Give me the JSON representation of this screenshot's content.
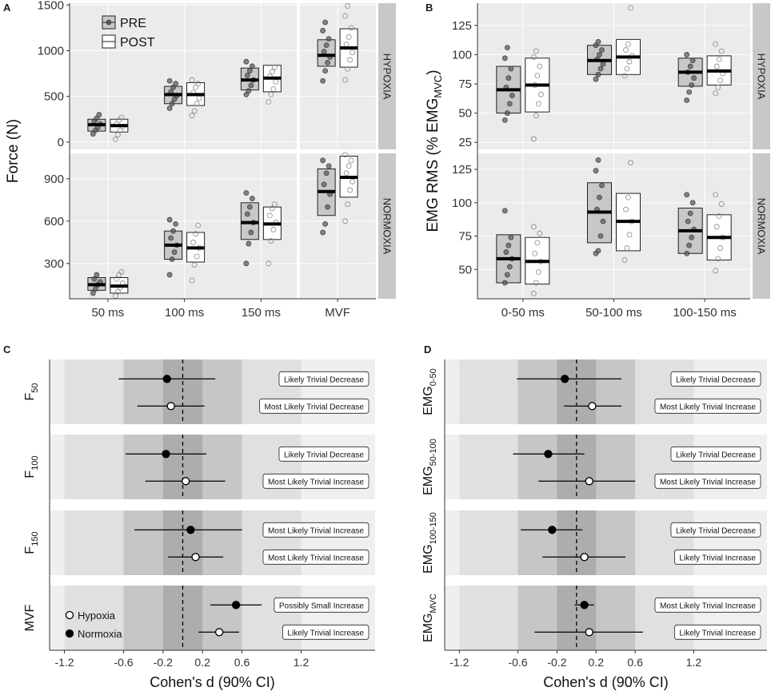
{
  "figure": {
    "colors": {
      "panel_bg": "#ebebeb",
      "grid": "#ffffff",
      "strip_bg": "#c8c8c8",
      "ci_band_light": "#e0e0e0",
      "ci_band_mid": "#c6c6c6",
      "ci_band_dark": "#adadad",
      "pre_fill": "#c8c8c8",
      "post_fill": "#ffffff",
      "pre_point": "#555555",
      "text": "#1a1a1a"
    }
  },
  "chart_data": [
    {
      "id": "A",
      "panel_label": "A",
      "type": "box",
      "ylabel": "Force (N)",
      "categories": [
        "50 ms",
        "100 ms",
        "150 ms",
        "MVF"
      ],
      "legend": {
        "pre": "PRE",
        "post": "POST",
        "position": "top-left"
      },
      "facets": [
        {
          "strip": "HYPOXIA",
          "ylim": [
            -80,
            1520
          ],
          "yticks": [
            0,
            500,
            1000,
            1500
          ],
          "boxes": [
            {
              "cat": 0,
              "group": "PRE",
              "q1": 120,
              "median": 190,
              "q3": 250,
              "points": [
                90,
                130,
                160,
                200,
                230,
                260,
                300
              ]
            },
            {
              "cat": 0,
              "group": "POST",
              "q1": 110,
              "median": 180,
              "q3": 250,
              "points": [
                30,
                80,
                130,
                170,
                200,
                240,
                270
              ]
            },
            {
              "cat": 1,
              "group": "PRE",
              "q1": 420,
              "median": 520,
              "q3": 610,
              "points": [
                370,
                420,
                470,
                510,
                550,
                600,
                640,
                670
              ]
            },
            {
              "cat": 1,
              "group": "POST",
              "q1": 400,
              "median": 520,
              "q3": 650,
              "points": [
                290,
                340,
                420,
                480,
                540,
                600,
                640,
                680
              ]
            },
            {
              "cat": 2,
              "group": "PRE",
              "q1": 570,
              "median": 680,
              "q3": 810,
              "points": [
                520,
                560,
                620,
                680,
                730,
                780,
                830,
                880
              ]
            },
            {
              "cat": 2,
              "group": "POST",
              "q1": 550,
              "median": 700,
              "q3": 840,
              "points": [
                440,
                520,
                580,
                660,
                720,
                770,
                820
              ]
            },
            {
              "cat": 3,
              "group": "PRE",
              "q1": 830,
              "median": 950,
              "q3": 1120,
              "points": [
                670,
                780,
                870,
                930,
                990,
                1060,
                1130,
                1220,
                1310
              ]
            },
            {
              "cat": 3,
              "group": "POST",
              "q1": 820,
              "median": 1030,
              "q3": 1240,
              "points": [
                680,
                800,
                900,
                980,
                1070,
                1150,
                1250,
                1380,
                1490
              ]
            }
          ]
        },
        {
          "strip": "NORMOXIA",
          "ylim": [
            50,
            1080
          ],
          "yticks": [
            300,
            600,
            900
          ],
          "boxes": [
            {
              "cat": 0,
              "group": "PRE",
              "q1": 110,
              "median": 150,
              "q3": 200,
              "points": [
                90,
                120,
                150,
                170,
                190,
                220
              ]
            },
            {
              "cat": 0,
              "group": "POST",
              "q1": 90,
              "median": 140,
              "q3": 200,
              "points": [
                70,
                100,
                130,
                160,
                190,
                220,
                240
              ]
            },
            {
              "cat": 1,
              "group": "PRE",
              "q1": 330,
              "median": 430,
              "q3": 530,
              "points": [
                220,
                330,
                380,
                430,
                480,
                530,
                580,
                610
              ]
            },
            {
              "cat": 1,
              "group": "POST",
              "q1": 310,
              "median": 410,
              "q3": 520,
              "points": [
                180,
                290,
                350,
                410,
                450,
                510,
                570
              ]
            },
            {
              "cat": 2,
              "group": "PRE",
              "q1": 470,
              "median": 590,
              "q3": 730,
              "points": [
                300,
                440,
                520,
                590,
                650,
                700,
                760,
                800
              ]
            },
            {
              "cat": 2,
              "group": "POST",
              "q1": 470,
              "median": 580,
              "q3": 700,
              "points": [
                300,
                460,
                540,
                590,
                640,
                690,
                720
              ]
            },
            {
              "cat": 3,
              "group": "PRE",
              "q1": 640,
              "median": 810,
              "q3": 970,
              "points": [
                520,
                580,
                700,
                790,
                860,
                940,
                990,
                1030
              ]
            },
            {
              "cat": 3,
              "group": "POST",
              "q1": 770,
              "median": 910,
              "q3": 1060,
              "points": [
                600,
                720,
                820,
                880,
                940,
                990,
                1030,
                1070
              ]
            }
          ]
        }
      ]
    },
    {
      "id": "B",
      "panel_label": "B",
      "type": "box",
      "ylabel": "EMG RMS (% EMG",
      "ylabel_sub": "MVC",
      "ylabel_end": ")",
      "categories": [
        "0-50 ms",
        "50-100 ms",
        "100-150 ms"
      ],
      "facets": [
        {
          "strip": "HYPOXIA",
          "ylim": [
            19,
            144
          ],
          "yticks": [
            25,
            50,
            75,
            100,
            125
          ],
          "boxes": [
            {
              "cat": 0,
              "group": "PRE",
              "q1": 50,
              "median": 70,
              "q3": 90,
              "points": [
                44,
                50,
                58,
                65,
                72,
                80,
                88,
                97,
                106
              ]
            },
            {
              "cat": 0,
              "group": "POST",
              "q1": 51,
              "median": 74,
              "q3": 97,
              "points": [
                28,
                48,
                58,
                66,
                74,
                82,
                90,
                98,
                103
              ]
            },
            {
              "cat": 1,
              "group": "PRE",
              "q1": 83,
              "median": 95,
              "q3": 108,
              "points": [
                79,
                83,
                88,
                92,
                96,
                100,
                104,
                108,
                111
              ]
            },
            {
              "cat": 1,
              "group": "POST",
              "q1": 83,
              "median": 98,
              "q3": 113,
              "points": [
                82,
                88,
                94,
                99,
                104,
                109,
                140
              ]
            },
            {
              "cat": 2,
              "group": "PRE",
              "q1": 73,
              "median": 85,
              "q3": 97,
              "points": [
                61,
                68,
                74,
                80,
                85,
                90,
                95,
                100
              ]
            },
            {
              "cat": 2,
              "group": "POST",
              "q1": 74,
              "median": 86,
              "q3": 99,
              "points": [
                67,
                72,
                78,
                84,
                90,
                96,
                103,
                109
              ]
            }
          ]
        },
        {
          "strip": "NORMOXIA",
          "ylim": [
            28,
            137
          ],
          "yticks": [
            50,
            75,
            100,
            125
          ],
          "boxes": [
            {
              "cat": 0,
              "group": "PRE",
              "q1": 40,
              "median": 58,
              "q3": 76,
              "points": [
                40,
                46,
                52,
                58,
                63,
                68,
                74,
                94
              ]
            },
            {
              "cat": 0,
              "group": "POST",
              "q1": 39,
              "median": 56,
              "q3": 74,
              "points": [
                32,
                40,
                48,
                56,
                62,
                70,
                77,
                82
              ]
            },
            {
              "cat": 1,
              "group": "PRE",
              "q1": 70,
              "median": 93,
              "q3": 115,
              "points": [
                62,
                64,
                75,
                86,
                95,
                104,
                113,
                124,
                132
              ]
            },
            {
              "cat": 1,
              "group": "POST",
              "q1": 64,
              "median": 86,
              "q3": 107,
              "points": [
                57,
                66,
                76,
                86,
                95,
                104,
                130
              ]
            },
            {
              "cat": 2,
              "group": "PRE",
              "q1": 62,
              "median": 79,
              "q3": 96,
              "points": [
                62,
                68,
                74,
                80,
                86,
                92,
                100,
                106
              ]
            },
            {
              "cat": 2,
              "group": "POST",
              "q1": 57,
              "median": 74,
              "q3": 91,
              "points": [
                49,
                58,
                66,
                74,
                82,
                90,
                99,
                106
              ]
            }
          ]
        }
      ]
    },
    {
      "id": "C",
      "panel_label": "C",
      "type": "forest",
      "xlabel": "Cohen's d (90% CI)",
      "xlim": [
        -1.35,
        1.95
      ],
      "xticks": [
        -1.2,
        -0.6,
        -0.2,
        0.2,
        0.6,
        1.2
      ],
      "xtick_labels": [
        "-1.2",
        "-0.6",
        "-0.2",
        "0.2",
        "0.6",
        "1.2"
      ],
      "band_edges": [
        -1.2,
        -0.6,
        -0.2,
        0.2,
        0.6,
        1.2
      ],
      "reference_line": 0,
      "legend": {
        "hypoxia": "Hypoxia",
        "normoxia": "Normoxia",
        "position": "bottom-left"
      },
      "facets": [
        {
          "main": "F",
          "sub": "50",
          "rows": [
            {
              "condition": "Normoxia",
              "estimate": -0.16,
              "lower": -0.65,
              "upper": 0.33,
              "label": "Likely Trivial Decrease"
            },
            {
              "condition": "Hypoxia",
              "estimate": -0.12,
              "lower": -0.46,
              "upper": 0.22,
              "label": "Most Likely Trivial Decrease"
            }
          ]
        },
        {
          "main": "F",
          "sub": "100",
          "rows": [
            {
              "condition": "Normoxia",
              "estimate": -0.17,
              "lower": -0.58,
              "upper": 0.24,
              "label": "Likely Trivial Decrease"
            },
            {
              "condition": "Hypoxia",
              "estimate": 0.03,
              "lower": -0.38,
              "upper": 0.43,
              "label": "Most Likely Trivial Increase"
            }
          ]
        },
        {
          "main": "F",
          "sub": "150",
          "rows": [
            {
              "condition": "Normoxia",
              "estimate": 0.08,
              "lower": -0.49,
              "upper": 0.6,
              "label": "Most Likely Trivial Increase"
            },
            {
              "condition": "Hypoxia",
              "estimate": 0.13,
              "lower": -0.15,
              "upper": 0.41,
              "label": "Most Likely Trivial Increase"
            }
          ]
        },
        {
          "main": "MVF",
          "sub": "",
          "rows": [
            {
              "condition": "Normoxia",
              "estimate": 0.54,
              "lower": 0.28,
              "upper": 0.8,
              "label": "Possibly Small Increase"
            },
            {
              "condition": "Hypoxia",
              "estimate": 0.37,
              "lower": 0.16,
              "upper": 0.57,
              "label": "Likely Trivial Increase"
            }
          ]
        }
      ]
    },
    {
      "id": "D",
      "panel_label": "D",
      "type": "forest",
      "xlabel": "Cohen's d (90% CI)",
      "xlim": [
        -1.35,
        1.95
      ],
      "xticks": [
        -1.2,
        -0.6,
        -0.2,
        0.2,
        0.6,
        1.2
      ],
      "xtick_labels": [
        "-1.2",
        "-0.6",
        "-0.2",
        "0.2",
        "0.6",
        "1.2"
      ],
      "band_edges": [
        -1.2,
        -0.6,
        -0.2,
        0.2,
        0.6,
        1.2
      ],
      "reference_line": 0,
      "facets": [
        {
          "main": "EMG",
          "sub": "0-50",
          "rows": [
            {
              "condition": "Normoxia",
              "estimate": -0.12,
              "lower": -0.61,
              "upper": 0.46,
              "label": "Likely Trivial Decrease"
            },
            {
              "condition": "Hypoxia",
              "estimate": 0.16,
              "lower": -0.13,
              "upper": 0.46,
              "label": "Most Likely Trivial Increase"
            }
          ]
        },
        {
          "main": "EMG",
          "sub": "50-100",
          "rows": [
            {
              "condition": "Normoxia",
              "estimate": -0.29,
              "lower": -0.65,
              "upper": 0.08,
              "label": "Likely Trivial Decrease"
            },
            {
              "condition": "Hypoxia",
              "estimate": 0.13,
              "lower": -0.39,
              "upper": 0.6,
              "label": "Most Likely Trivial Increase"
            }
          ]
        },
        {
          "main": "EMG",
          "sub": "100-150",
          "rows": [
            {
              "condition": "Normoxia",
              "estimate": -0.25,
              "lower": -0.57,
              "upper": 0.06,
              "label": "Likely Trivial Decrease"
            },
            {
              "condition": "Hypoxia",
              "estimate": 0.08,
              "lower": -0.35,
              "upper": 0.5,
              "label": "Likely Trivial Increase"
            }
          ]
        },
        {
          "main": "EMG",
          "sub": "MVC",
          "rows": [
            {
              "condition": "Normoxia",
              "estimate": 0.08,
              "lower": -0.02,
              "upper": 0.18,
              "label": "Most Likely Trivial Increase"
            },
            {
              "condition": "Hypoxia",
              "estimate": 0.13,
              "lower": -0.43,
              "upper": 0.68,
              "label": "Likely Trivial Increase"
            }
          ]
        }
      ]
    }
  ]
}
